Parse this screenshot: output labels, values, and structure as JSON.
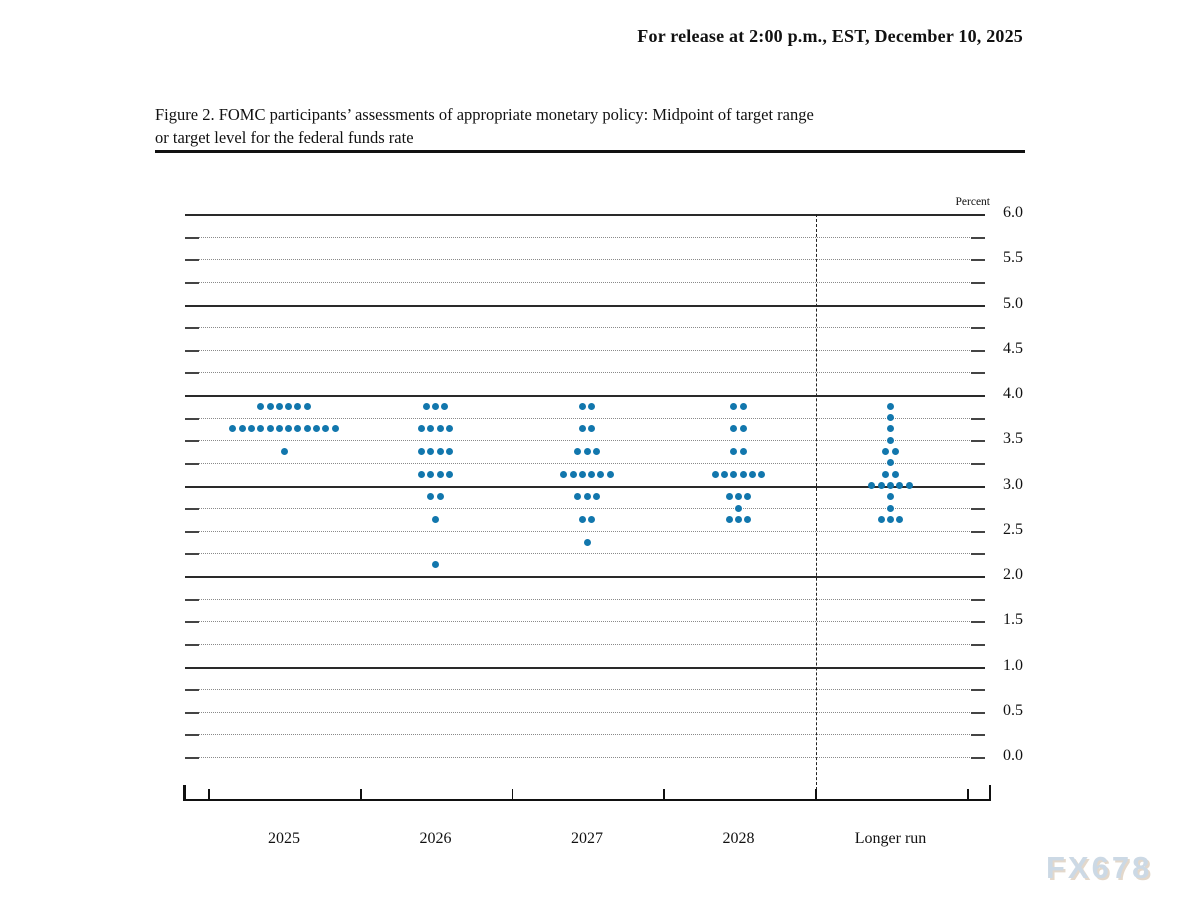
{
  "header": {
    "release_line": "For release at 2:00 p.m., EST, December 10, 2025"
  },
  "figure": {
    "title_line1": "Figure 2. FOMC participants’ assessments of appropriate monetary policy: Midpoint of target range",
    "title_line2": "or target level for the federal funds rate"
  },
  "watermark": "FX678",
  "chart_data": {
    "type": "scatter",
    "subtype": "fomc-dot-plot",
    "ylabel": "Percent",
    "ylim": [
      0.0,
      6.0
    ],
    "gridline_step": 0.25,
    "solid_gridlines_at_integers": true,
    "legend": "none",
    "y_tick_labels": [
      "6.0",
      "5.5",
      "5.0",
      "4.5",
      "4.0",
      "3.5",
      "3.0",
      "2.5",
      "2.0",
      "1.5",
      "1.0",
      "0.5",
      "0.0"
    ],
    "y_tick_values": [
      6.0,
      5.5,
      5.0,
      4.5,
      4.0,
      3.5,
      3.0,
      2.5,
      2.0,
      1.5,
      1.0,
      0.5,
      0.0
    ],
    "categories": [
      "2025",
      "2026",
      "2027",
      "2028",
      "Longer run"
    ],
    "separator_before_category": "Longer run",
    "dot_color": "#1277ad",
    "participants_per_year": 19,
    "series": [
      {
        "category": "2025",
        "dots": [
          {
            "rate": 3.875,
            "count": 6
          },
          {
            "rate": 3.625,
            "count": 12
          },
          {
            "rate": 3.375,
            "count": 1
          }
        ]
      },
      {
        "category": "2026",
        "dots": [
          {
            "rate": 3.875,
            "count": 3
          },
          {
            "rate": 3.625,
            "count": 4
          },
          {
            "rate": 3.375,
            "count": 4
          },
          {
            "rate": 3.125,
            "count": 4
          },
          {
            "rate": 2.875,
            "count": 2
          },
          {
            "rate": 2.625,
            "count": 1
          },
          {
            "rate": 2.125,
            "count": 1
          }
        ]
      },
      {
        "category": "2027",
        "dots": [
          {
            "rate": 3.875,
            "count": 2
          },
          {
            "rate": 3.625,
            "count": 2
          },
          {
            "rate": 3.375,
            "count": 3
          },
          {
            "rate": 3.125,
            "count": 6
          },
          {
            "rate": 2.875,
            "count": 3
          },
          {
            "rate": 2.625,
            "count": 2
          },
          {
            "rate": 2.375,
            "count": 1
          }
        ]
      },
      {
        "category": "2028",
        "dots": [
          {
            "rate": 3.875,
            "count": 2
          },
          {
            "rate": 3.625,
            "count": 2
          },
          {
            "rate": 3.375,
            "count": 2
          },
          {
            "rate": 3.125,
            "count": 6
          },
          {
            "rate": 2.875,
            "count": 3
          },
          {
            "rate": 2.75,
            "count": 1
          },
          {
            "rate": 2.625,
            "count": 3
          }
        ]
      },
      {
        "category": "Longer run",
        "dots": [
          {
            "rate": 3.875,
            "count": 1
          },
          {
            "rate": 3.75,
            "count": 1
          },
          {
            "rate": 3.625,
            "count": 1
          },
          {
            "rate": 3.5,
            "count": 1
          },
          {
            "rate": 3.375,
            "count": 2
          },
          {
            "rate": 3.25,
            "count": 1
          },
          {
            "rate": 3.125,
            "count": 2
          },
          {
            "rate": 3.0,
            "count": 5
          },
          {
            "rate": 2.875,
            "count": 1
          },
          {
            "rate": 2.75,
            "count": 1
          },
          {
            "rate": 2.625,
            "count": 3
          }
        ]
      }
    ]
  }
}
